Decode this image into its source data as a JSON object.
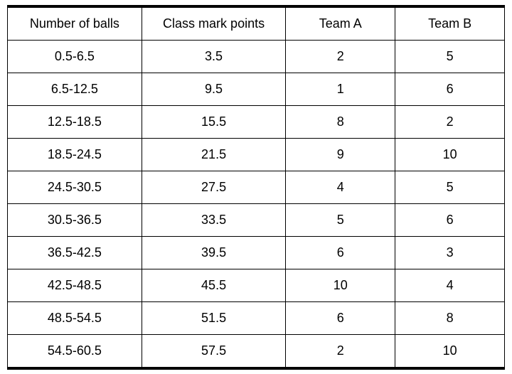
{
  "table": {
    "type": "table",
    "columns": [
      "Number of balls",
      "Class mark points",
      "Team A",
      "Team B"
    ],
    "column_widths": [
      "27%",
      "29%",
      "22%",
      "22%"
    ],
    "rows": [
      [
        "0.5-6.5",
        "3.5",
        "2",
        "5"
      ],
      [
        "6.5-12.5",
        "9.5",
        "1",
        "6"
      ],
      [
        "12.5-18.5",
        "15.5",
        "8",
        "2"
      ],
      [
        "18.5-24.5",
        "21.5",
        "9",
        "10"
      ],
      [
        "24.5-30.5",
        "27.5",
        "4",
        "5"
      ],
      [
        "30.5-36.5",
        "33.5",
        "5",
        "6"
      ],
      [
        "36.5-42.5",
        "39.5",
        "6",
        "3"
      ],
      [
        "42.5-48.5",
        "45.5",
        "10",
        "4"
      ],
      [
        "48.5-54.5",
        "51.5",
        "6",
        "8"
      ],
      [
        "54.5-60.5",
        "57.5",
        "2",
        "10"
      ]
    ],
    "border_color": "#000000",
    "outer_border_width_top_bottom": 3,
    "cell_border_width": 1,
    "background_color": "#ffffff",
    "text_color": "#000000",
    "font_size": 18,
    "cell_padding": "12px 8px",
    "text_align": "center"
  }
}
